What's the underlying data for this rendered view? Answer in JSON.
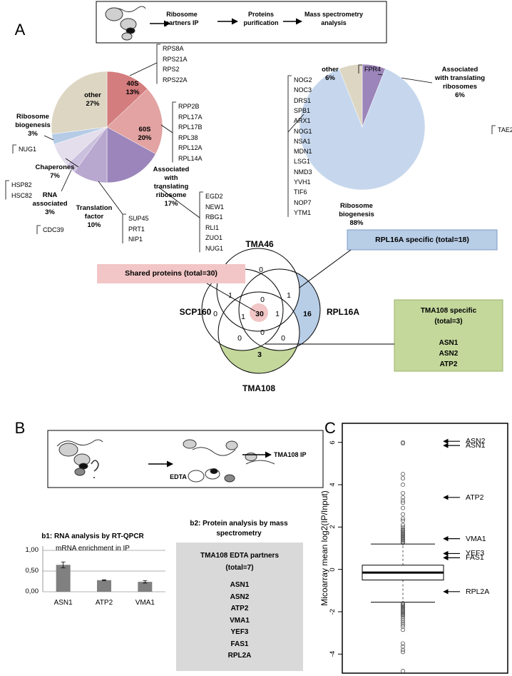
{
  "panel_labels": [
    "A",
    "B",
    "C"
  ],
  "scheme_a": {
    "steps": [
      "Ribosome partners IP",
      "Proteins purification",
      "Mass spectrometry analysis"
    ]
  },
  "scheme_b": {
    "steps": [
      "EDTA",
      "TMA108 IP"
    ]
  },
  "venn": {
    "sets": [
      "TMA46",
      "SCP160",
      "RPL16A",
      "TMA108"
    ],
    "regions": [
      0,
      0,
      16,
      3,
      1,
      1,
      0,
      30,
      1,
      1,
      0,
      0,
      0
    ],
    "shared_box": "Shared proteins (total=30)",
    "rpl16a_box": "RPL16A specific (total=18)",
    "tma108_box": {
      "title": "TMA108 specific (total=3)",
      "proteins": [
        "ASN1",
        "ASN2",
        "ATP2"
      ]
    }
  },
  "b2": {
    "title": "b2: Protein analysis by mass spectrometry",
    "box_title": "TMA108 EDTA partners (total=7)",
    "proteins": [
      "ASN1",
      "ASN2",
      "ATP2",
      "VMA1",
      "YEF3",
      "FAS1",
      "RPL2A"
    ]
  },
  "chart_data": [
    {
      "type": "pie",
      "labels": [
        "40S",
        "60S",
        "Associated with translating ribosome",
        "Translation factor",
        "RNA associated",
        "Chaperones",
        "Ribosome biogenesis",
        "other"
      ],
      "values": [
        13,
        20,
        17,
        10,
        3,
        7,
        3,
        27
      ],
      "value_labels": [
        "13%",
        "20%",
        "17%",
        "10%",
        "3%",
        "7%",
        "3%",
        "27%"
      ],
      "colors": [
        "#d47d7e",
        "#e2a3a2",
        "#9b85ba",
        "#b8a7cf",
        "#cbc0dd",
        "#e4deec",
        "#b5cbe6",
        "#ddd6c3"
      ],
      "proteins": [
        [
          "RPS8A",
          "RPS21A",
          "RPS2",
          "RPS22A"
        ],
        [
          "RPP2B",
          "RPL17A",
          "RPL17B",
          "RPL38",
          "RPL12A",
          "RPL14A"
        ],
        [
          "EGD2",
          "NEW1",
          "RBG1",
          "RLI1",
          "ZUO1",
          "NUG1"
        ],
        [
          "SUP45",
          "PRT1",
          "NIP1"
        ],
        [
          "CDC39"
        ],
        [
          "HSP82",
          "HSC82"
        ],
        [
          "NUG1"
        ],
        []
      ]
    },
    {
      "type": "pie",
      "labels": [
        "Associated with translating ribosomes",
        "Ribosome biogenesis",
        "other"
      ],
      "values": [
        6,
        88,
        6
      ],
      "value_labels": [
        "6%",
        "88%",
        "6%"
      ],
      "colors": [
        "#9b85ba",
        "#c6d7ed",
        "#ddd6c3"
      ],
      "proteins": [
        [
          "TAE2"
        ],
        [
          "NOG2",
          "NOC3",
          "DRS1",
          "SPB1",
          "ARX1",
          "NOG1",
          "NSA1",
          "MDN1",
          "LSG1",
          "NMD3",
          "YVH1",
          "TIF6",
          "NOP7",
          "YTM1"
        ],
        [
          "FPR4"
        ]
      ]
    },
    {
      "type": "bar",
      "title": "b1: RNA analysis by RT-QPCR",
      "subtitle": "mRNA enrichment in IP",
      "categories": [
        "ASN1",
        "ATP2",
        "VMA1"
      ],
      "values": [
        0.65,
        0.28,
        0.24
      ],
      "errors": [
        0.07,
        0.01,
        0.03
      ],
      "color": "#808080",
      "ylim": [
        0,
        1
      ],
      "yticks": [
        {
          "value": 0,
          "label": "0,00"
        },
        {
          "value": 0.5,
          "label": "0,50"
        },
        {
          "value": 1,
          "label": "1,00"
        }
      ],
      "grid": true
    },
    {
      "type": "box",
      "ylabel": "Micoarray mean log2(IP/Input)",
      "ylim": [
        -4.9,
        6.9
      ],
      "yticks": [
        -4,
        -2,
        0,
        2,
        4,
        6
      ],
      "median": -0.15,
      "q1": -0.5,
      "q3": 0.2,
      "whisker_low": -1.55,
      "whisker_high": 1.2,
      "outliers": [
        6.0,
        5.95,
        4.5,
        4.3,
        4.0,
        3.6,
        3.4,
        3.25,
        3.15,
        2.9,
        2.6,
        2.4,
        2.3,
        2.1,
        2.0,
        1.9,
        1.85,
        1.8,
        1.75,
        1.7,
        1.65,
        1.6,
        1.55,
        1.5,
        1.45,
        1.4,
        1.35,
        1.3,
        1.25,
        -1.6,
        -1.65,
        -1.7,
        -1.75,
        -1.8,
        -1.85,
        -1.9,
        -1.95,
        -2.0,
        -2.05,
        -2.1,
        -2.15,
        -2.2,
        -2.3,
        -2.4,
        -2.5,
        -2.6,
        -2.7,
        -2.85,
        -3.5,
        -3.65,
        -3.8,
        -3.9,
        -4.8
      ],
      "annotations": [
        {
          "label": "ASN2",
          "y": 6.05
        },
        {
          "label": "ASN1",
          "y": 5.85
        },
        {
          "label": "ATP2",
          "y": 3.4
        },
        {
          "label": "VMA1",
          "y": 1.45
        },
        {
          "label": "YEF3",
          "y": 0.75
        },
        {
          "label": "FAS1",
          "y": 0.55
        },
        {
          "label": "RPL2A",
          "y": -1.05
        }
      ]
    }
  ]
}
